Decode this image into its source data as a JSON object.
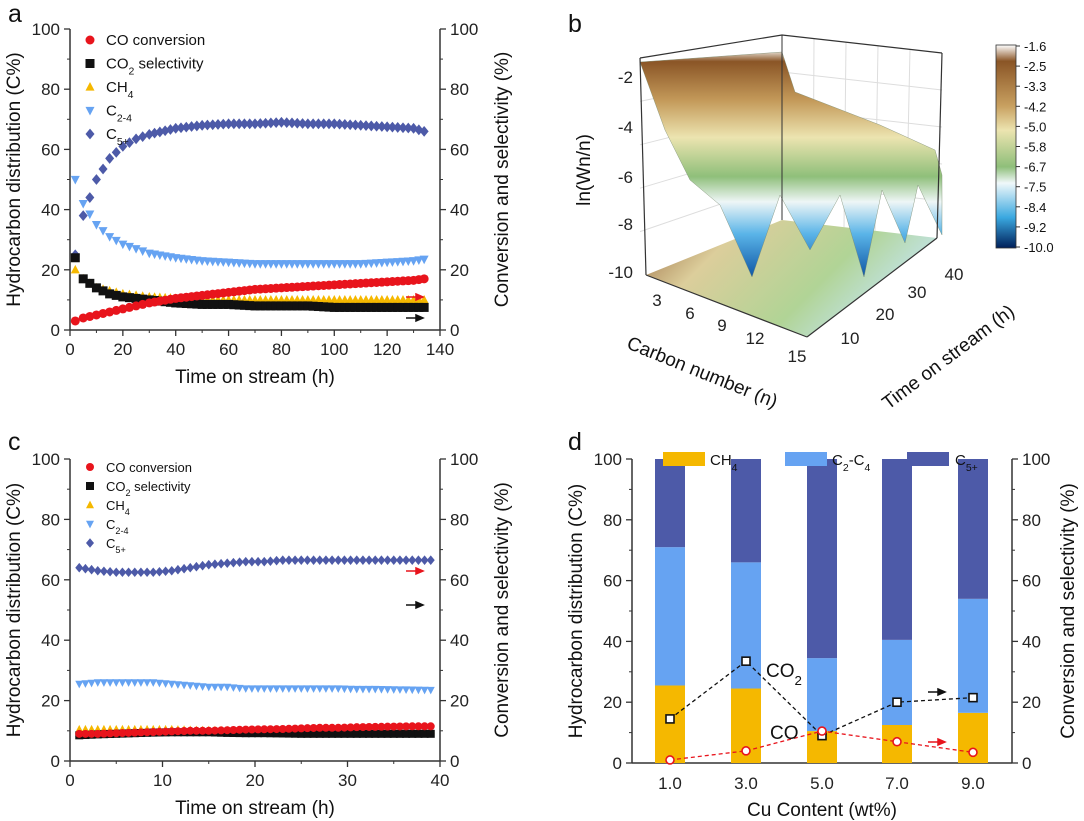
{
  "panel_labels": [
    "a",
    "b",
    "c",
    "d"
  ],
  "colors": {
    "co": "#e8141c",
    "co2": "#111111",
    "ch4": "#f5b800",
    "c24": "#66a3f2",
    "c5": "#4d5aa8"
  },
  "chart_data": [
    {
      "id": "a",
      "type": "scatter",
      "xlabel": "Time on stream (h)",
      "ylabel": "Hydrocarbon distribution (C%)",
      "y2label": "Conversion and selectivity (%)",
      "xlim": [
        0,
        140
      ],
      "ylim": [
        0,
        100
      ],
      "y2lim": [
        0,
        100
      ],
      "xticks": [
        0,
        20,
        40,
        60,
        80,
        100,
        120,
        140
      ],
      "yticks": [
        0,
        20,
        40,
        60,
        80,
        100
      ],
      "x": [
        2,
        5,
        10,
        15,
        20,
        25,
        30,
        40,
        50,
        60,
        70,
        80,
        90,
        100,
        110,
        120,
        130,
        134
      ],
      "series": [
        {
          "key": "co",
          "name": [
            [
              "CO conversion",
              ""
            ]
          ],
          "marker": "circle",
          "axis": "right",
          "values": [
            3,
            4,
            5,
            6,
            7,
            8,
            9,
            10.5,
            11.5,
            12.5,
            13.5,
            14,
            14.5,
            15,
            15.5,
            16,
            16.5,
            17
          ]
        },
        {
          "key": "co2",
          "name": [
            [
              "CO",
              ""
            ],
            [
              "2",
              "sub"
            ],
            [
              " selectivity",
              ""
            ]
          ],
          "marker": "square",
          "axis": "right",
          "values": [
            24,
            17,
            14,
            12,
            11,
            10.5,
            10,
            9,
            8.5,
            8.5,
            8,
            8,
            8,
            7.5,
            7.5,
            7.5,
            7.5,
            7.5
          ]
        },
        {
          "key": "ch4",
          "name": [
            [
              "CH",
              ""
            ],
            [
              "4",
              "sub"
            ]
          ],
          "marker": "triangle-up",
          "axis": "left",
          "values": [
            20,
            17,
            14,
            13,
            12,
            11.5,
            11,
            10.5,
            10,
            10,
            10,
            10,
            10,
            10,
            10,
            10,
            10,
            10
          ]
        },
        {
          "key": "c24",
          "name": [
            [
              "C",
              ""
            ],
            [
              "2-4",
              "sub"
            ]
          ],
          "marker": "triangle-down",
          "axis": "left",
          "values": [
            50,
            42,
            35,
            31,
            28.5,
            27,
            25.5,
            24,
            23,
            22.5,
            22,
            22,
            22,
            22,
            22,
            22.5,
            23,
            23.5
          ]
        },
        {
          "key": "c5",
          "name": [
            [
              "C",
              ""
            ],
            [
              "5+",
              "sub"
            ]
          ],
          "marker": "diamond",
          "axis": "left",
          "values": [
            25,
            38,
            50,
            57,
            61,
            63.5,
            65,
            67,
            68,
            68.5,
            68.5,
            69,
            68.5,
            68.5,
            68,
            67.5,
            67,
            66
          ]
        }
      ],
      "legend": "top-left"
    },
    {
      "id": "b",
      "type": "surface",
      "zlabel": "ln(Wn/n)",
      "xlabel": "Carbon number (n)",
      "ylabel": "Time on stream (h)",
      "zticks": [
        "-2",
        "-4",
        "-6",
        "-8",
        "-10"
      ],
      "xticks": [
        "3",
        "6",
        "9",
        "12",
        "15"
      ],
      "yticks": [
        "10",
        "20",
        "30",
        "40"
      ],
      "colorbar_ticks": [
        "-1.6",
        "-2.5",
        "-3.3",
        "-4.2",
        "-5.0",
        "-5.8",
        "-6.7",
        "-7.5",
        "-8.4",
        "-9.2",
        "-10.0"
      ]
    },
    {
      "id": "c",
      "type": "scatter",
      "xlabel": "Time on stream (h)",
      "ylabel": "Hydrocarbon distribution (C%)",
      "y2label": "Conversion and selectivity (%)",
      "xlim": [
        0,
        40
      ],
      "ylim": [
        0,
        100
      ],
      "y2lim": [
        0,
        100
      ],
      "xticks": [
        0,
        10,
        20,
        30,
        40
      ],
      "yticks": [
        0,
        20,
        40,
        60,
        80,
        100
      ],
      "x": [
        1,
        3,
        5,
        7,
        9,
        11,
        13,
        15,
        17,
        19,
        21,
        23,
        25,
        27,
        29,
        31,
        33,
        35,
        37,
        39
      ],
      "series": [
        {
          "key": "co",
          "name": [
            [
              "CO conversion",
              ""
            ]
          ],
          "marker": "circle",
          "axis": "right",
          "values": [
            9,
            9,
            9.2,
            9.4,
            9.6,
            9.8,
            10,
            10,
            10.2,
            10.4,
            10.5,
            10.6,
            10.8,
            11,
            11,
            11.2,
            11.3,
            11.4,
            11.5,
            11.5
          ]
        },
        {
          "key": "co2",
          "name": [
            [
              "CO",
              ""
            ],
            [
              "2",
              "sub"
            ],
            " selectivity"
          ],
          "marker": "square",
          "axis": "right",
          "values": [
            8.5,
            8.8,
            9,
            9.2,
            9.4,
            9.5,
            9.5,
            9.5,
            9.3,
            9.2,
            9.2,
            9.1,
            9,
            9,
            9,
            9,
            9,
            9,
            9,
            9
          ]
        },
        {
          "key": "ch4",
          "name": [
            [
              "CH",
              ""
            ],
            [
              "4",
              "sub"
            ]
          ],
          "marker": "triangle-up",
          "axis": "left",
          "values": [
            10.5,
            10.5,
            10.5,
            10.5,
            10.5,
            10.5,
            10.3,
            10.2,
            10.2,
            10,
            10,
            10,
            10,
            10,
            10,
            10,
            10,
            10,
            10,
            10
          ]
        },
        {
          "key": "c24",
          "name": [
            [
              "C",
              ""
            ],
            [
              "2-4",
              "sub"
            ]
          ],
          "marker": "triangle-down",
          "axis": "left",
          "values": [
            25.5,
            26,
            26,
            26,
            26,
            25.5,
            25,
            24.5,
            24.5,
            24,
            24,
            24,
            24,
            24,
            24,
            23.8,
            23.8,
            23.7,
            23.6,
            23.5
          ]
        },
        {
          "key": "c5",
          "name": [
            [
              "C",
              ""
            ],
            [
              "5+",
              "sub"
            ]
          ],
          "marker": "diamond",
          "axis": "left",
          "values": [
            64,
            63,
            62.5,
            62.5,
            62.5,
            63,
            64,
            65,
            65.5,
            66,
            66,
            66.5,
            66.5,
            66.5,
            66.5,
            66.5,
            66.5,
            66.5,
            66.5,
            66.5
          ]
        }
      ],
      "legend": "top-left"
    },
    {
      "id": "d",
      "type": "bar",
      "xlabel": "Cu Content (wt%)",
      "ylabel": "Hydrocarbon distribution (C%)",
      "y2label": "Conversion and selectivity (%)",
      "categories": [
        "1.0",
        "3.0",
        "5.0",
        "7.0",
        "9.0"
      ],
      "ylim": [
        0,
        100
      ],
      "yticks": [
        0,
        20,
        40,
        60,
        80,
        100
      ],
      "stacked_series": [
        {
          "key": "ch4",
          "name": [
            [
              "CH",
              ""
            ],
            [
              "4",
              "sub"
            ]
          ],
          "values": [
            25.5,
            24.5,
            10.5,
            12.5,
            16.5
          ]
        },
        {
          "key": "c24",
          "name": [
            [
              "C",
              ""
            ],
            [
              "2",
              "sub"
            ],
            [
              "-C",
              ""
            ],
            [
              "4",
              "sub"
            ]
          ],
          "values": [
            45.5,
            41.5,
            24,
            28,
            37.5
          ]
        },
        {
          "key": "c5",
          "name": [
            [
              "C",
              ""
            ],
            [
              "5+",
              "sub"
            ]
          ],
          "values": [
            29,
            34,
            65.5,
            59.5,
            46
          ]
        }
      ],
      "line_series": [
        {
          "key": "co2",
          "label": [
            [
              "CO",
              ""
            ],
            [
              "2",
              "sub"
            ]
          ],
          "marker": "square",
          "values": [
            14.5,
            33.5,
            9,
            20,
            21.5
          ]
        },
        {
          "key": "co",
          "label": [
            [
              "CO",
              ""
            ]
          ],
          "marker": "circle",
          "values": [
            1,
            4,
            10.5,
            7,
            3.5
          ]
        }
      ],
      "legend": "top"
    }
  ]
}
